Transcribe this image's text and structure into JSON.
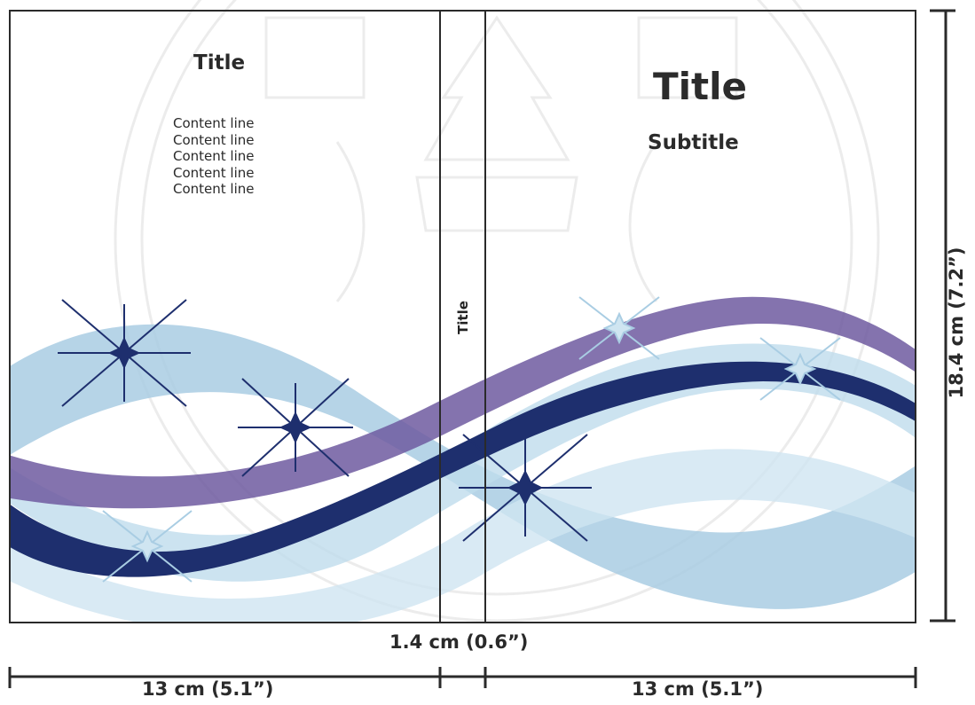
{
  "back_cover": {
    "title": "Title",
    "content_lines": [
      "Content line",
      "Content line",
      "Content line",
      "Content line",
      "Content line"
    ]
  },
  "spine": {
    "title": "Title"
  },
  "front_cover": {
    "title": "Title",
    "subtitle": "Subtitle"
  },
  "dimensions": {
    "spine_width": "1.4 cm (0.6”)",
    "back_width": "13 cm (5.1”)",
    "front_width": "13 cm (5.1”)",
    "height": "18.4 cm (7.2”)"
  },
  "colors": {
    "light_blue": "#a9cde3",
    "purple": "#6e5aa0",
    "navy": "#1e2f6e",
    "line": "#2a2a2a"
  }
}
